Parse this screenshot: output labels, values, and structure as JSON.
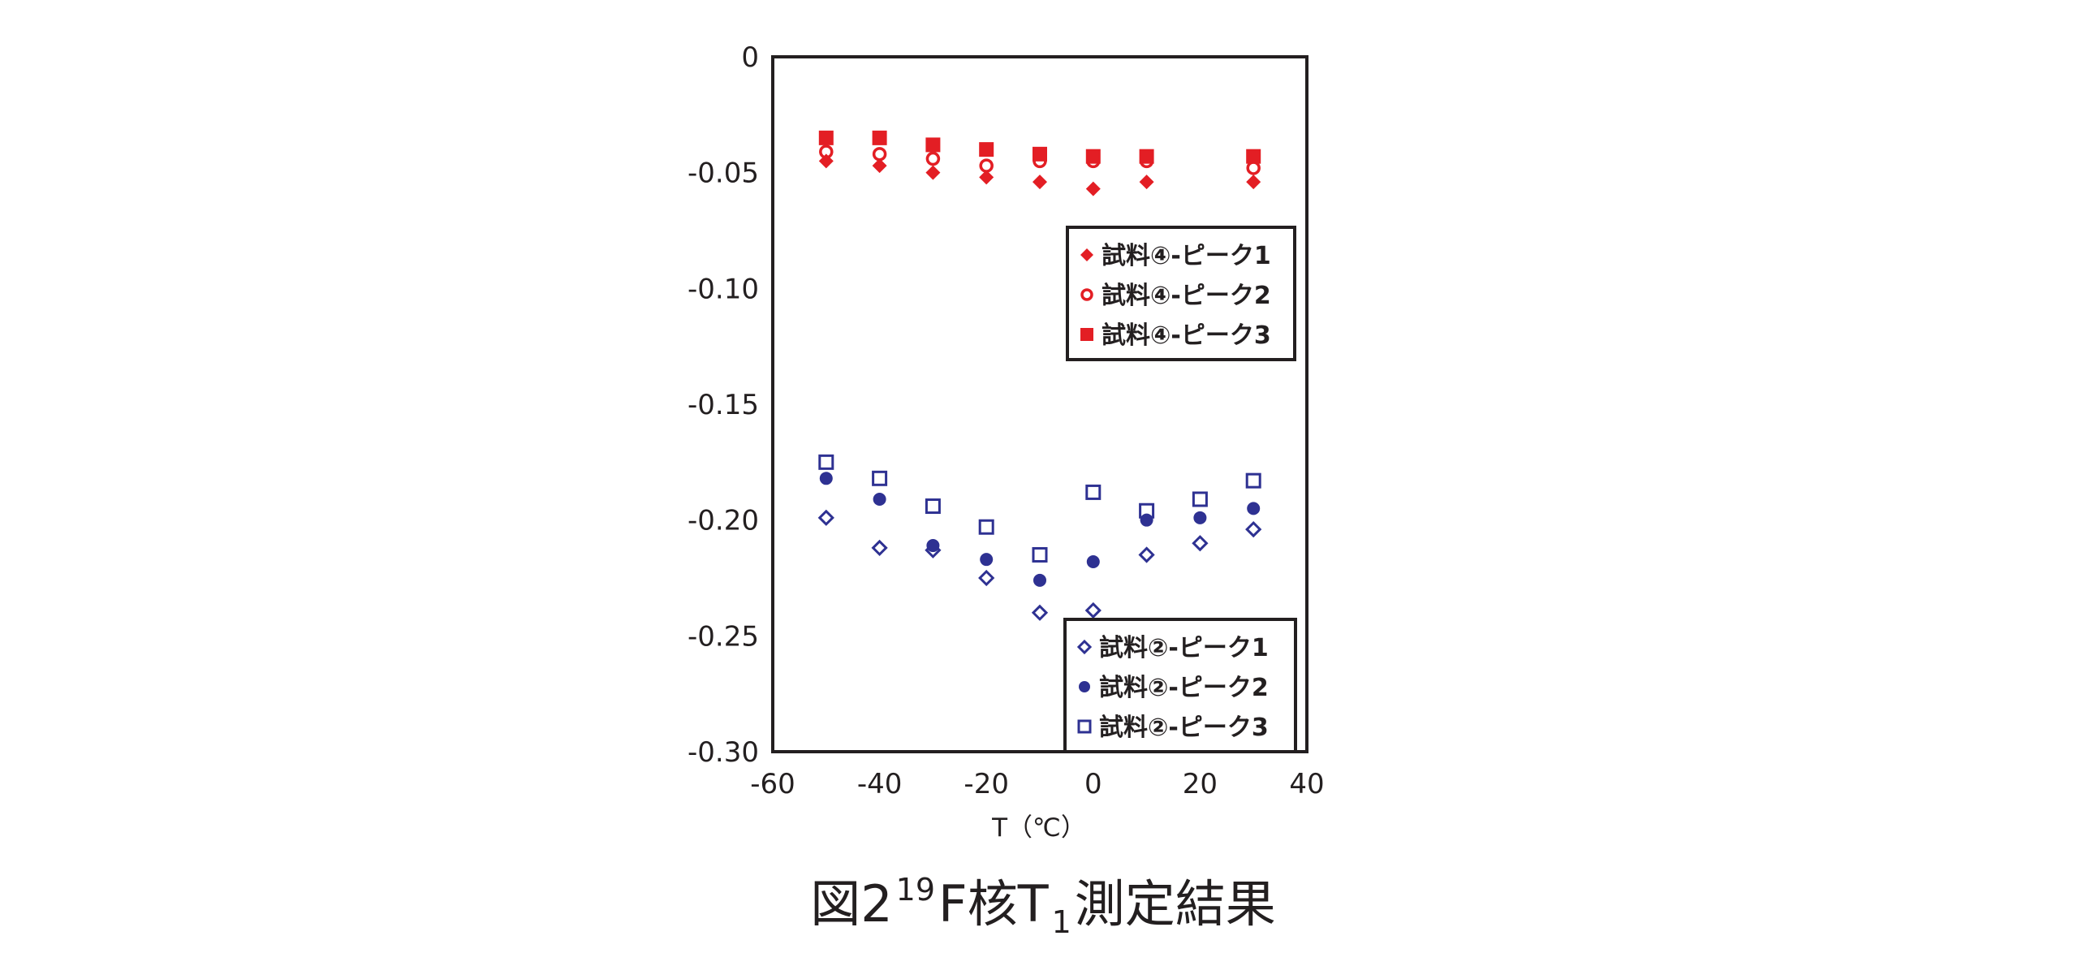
{
  "chart_data": {
    "type": "scatter",
    "xlabel": "T（℃）",
    "ylabel": "",
    "xlim": [
      -60,
      40
    ],
    "ylim": [
      -0.3,
      0
    ],
    "xticks": [
      "-60",
      "-40",
      "-20",
      "0",
      "20",
      "40"
    ],
    "yticks": [
      "0",
      "-0.05",
      "-0.10",
      "-0.15",
      "-0.20",
      "-0.25",
      "-0.30"
    ],
    "grid": false,
    "legends": [
      {
        "placement": "upper-right",
        "entries": [
          "試料④-ピーク1",
          "試料④-ピーク2",
          "試料④-ピーク3"
        ]
      },
      {
        "placement": "lower-right",
        "entries": [
          "試料②-ピーク1",
          "試料②-ピーク2",
          "試料②-ピーク3"
        ]
      }
    ],
    "series": [
      {
        "name": "試料④-ピーク1",
        "marker": "diamond-filled",
        "color": "#e31e24",
        "x": [
          -50,
          -40,
          -30,
          -20,
          -10,
          0,
          10,
          30
        ],
        "y": [
          -0.045,
          -0.047,
          -0.05,
          -0.052,
          -0.054,
          -0.057,
          -0.054,
          -0.054
        ]
      },
      {
        "name": "試料④-ピーク2",
        "marker": "circle-open",
        "color": "#e31e24",
        "x": [
          -50,
          -40,
          -30,
          -20,
          -10,
          0,
          10,
          30
        ],
        "y": [
          -0.041,
          -0.042,
          -0.044,
          -0.047,
          -0.045,
          -0.045,
          -0.045,
          -0.048
        ]
      },
      {
        "name": "試料④-ピーク3",
        "marker": "square-filled",
        "color": "#e31e24",
        "x": [
          -50,
          -40,
          -30,
          -20,
          -10,
          0,
          10,
          30
        ],
        "y": [
          -0.035,
          -0.035,
          -0.038,
          -0.04,
          -0.042,
          -0.043,
          -0.043,
          -0.043
        ]
      },
      {
        "name": "試料②-ピーク1",
        "marker": "diamond-open",
        "color": "#2e3192",
        "x": [
          -50,
          -40,
          -30,
          -20,
          -10,
          0,
          10,
          20,
          30
        ],
        "y": [
          -0.199,
          -0.212,
          -0.213,
          -0.225,
          -0.24,
          -0.239,
          -0.215,
          -0.21,
          -0.204
        ]
      },
      {
        "name": "試料②-ピーク2",
        "marker": "circle-filled",
        "color": "#2e3192",
        "x": [
          -50,
          -40,
          -30,
          -20,
          -10,
          0,
          10,
          20,
          30
        ],
        "y": [
          -0.182,
          -0.191,
          -0.211,
          -0.217,
          -0.226,
          -0.218,
          -0.2,
          -0.199,
          -0.195
        ]
      },
      {
        "name": "試料②-ピーク3",
        "marker": "square-open",
        "color": "#2e3192",
        "x": [
          -50,
          -40,
          -30,
          -20,
          -10,
          0,
          10,
          20,
          30
        ],
        "y": [
          -0.175,
          -0.182,
          -0.194,
          -0.203,
          -0.215,
          -0.188,
          -0.196,
          -0.191,
          -0.183
        ]
      }
    ]
  },
  "caption": {
    "prefix": "図2",
    "isotope_mass": "19",
    "element": "F核T",
    "subscript": "1",
    "suffix": "測定結果"
  }
}
